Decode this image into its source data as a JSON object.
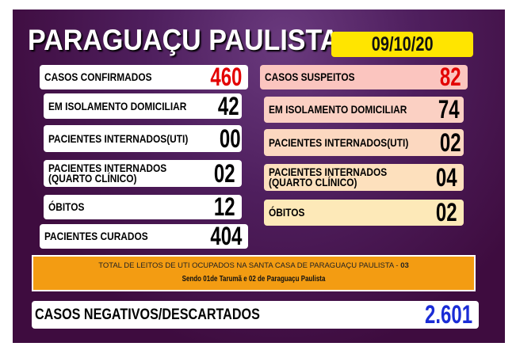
{
  "title": "PARAGUAÇU PAULISTA",
  "date": "09/10/20",
  "left": [
    {
      "label": "CASOS CONFIRMADOS",
      "value": "460"
    },
    {
      "label": "EM ISOLAMENTO DOMICILIAR",
      "value": "42"
    },
    {
      "label": "PACIENTES INTERNADOS(UTI)",
      "value": "00"
    },
    {
      "label": "PACIENTES INTERNADOS",
      "label2": "(QUARTO CLÍNICO)",
      "value": "02"
    },
    {
      "label": "ÓBITOS",
      "value": "12"
    },
    {
      "label": "PACIENTES CURADOS",
      "value": "404"
    }
  ],
  "right": [
    {
      "label": "CASOS SUSPEITOS",
      "value": "82"
    },
    {
      "label": "EM ISOLAMENTO DOMICILIAR",
      "value": "74"
    },
    {
      "label": "PACIENTES INTERNADOS(UTI)",
      "value": "02"
    },
    {
      "label": "PACIENTES INTERNADOS",
      "label2": "(QUARTO CLÍNICO)",
      "value": "04"
    },
    {
      "label": "ÓBITOS",
      "value": "02"
    }
  ],
  "uti_note": {
    "line1": "TOTAL DE LEITOS DE UTI OCUPADOS NA SANTA CASA DE PARAGUAÇU PAULISTA - ",
    "line1_value": "03",
    "line2": "Sendo 01de Tarumã e 02 de Paraguaçu Paulista"
  },
  "negativos": {
    "label": "CASOS NEGATIVOS/DESCARTADOS",
    "value": "2.601"
  },
  "colors": {
    "panel": "#3e0c3f",
    "date_bg": "#ffe500",
    "confirmed": "#e30000",
    "negatives": "#1a2cd6",
    "note_bg": "#f39c12"
  }
}
